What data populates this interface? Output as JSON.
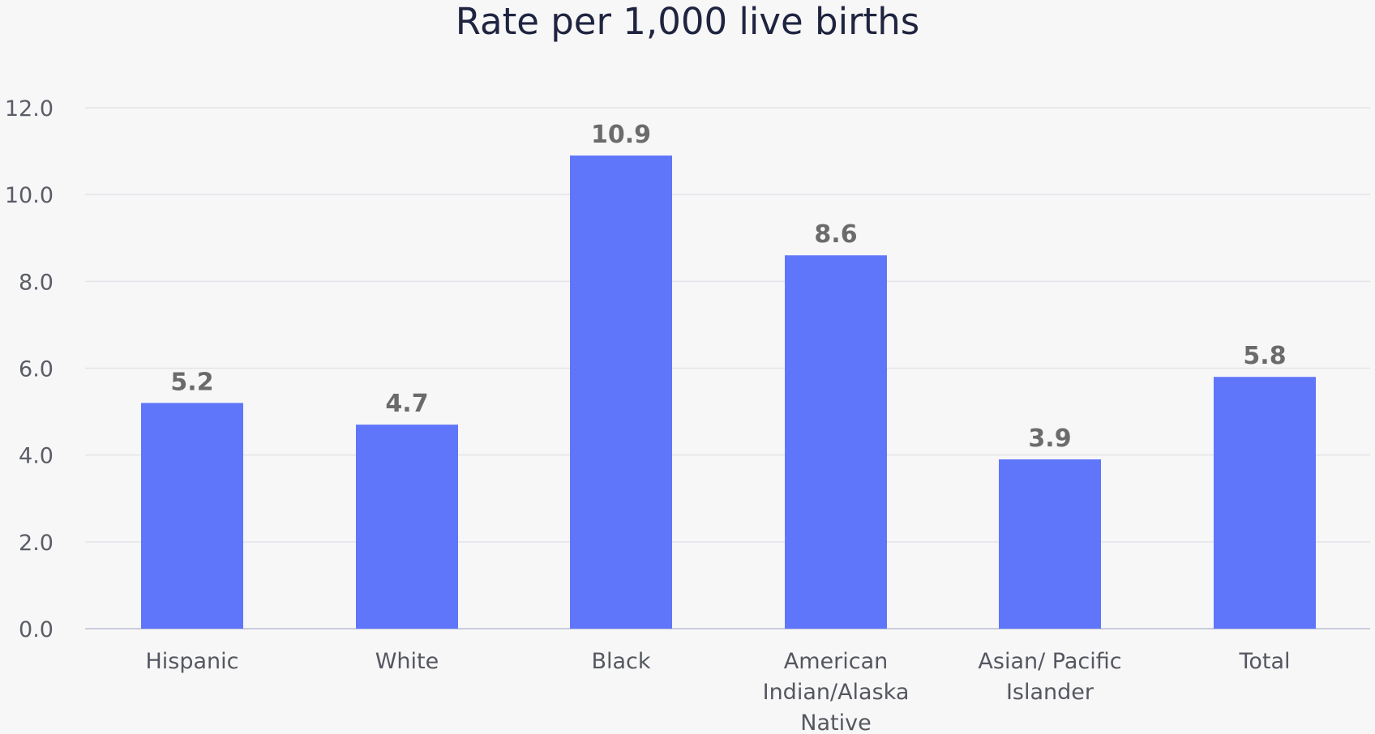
{
  "chart_data": {
    "type": "bar",
    "title": "Rate per 1,000 live births",
    "categories": [
      [
        "Hispanic"
      ],
      [
        "White"
      ],
      [
        "Black"
      ],
      [
        "American",
        "Indian/Alaska",
        "Native"
      ],
      [
        "Asian/ Pacific",
        "Islander"
      ],
      [
        "Total"
      ]
    ],
    "values": [
      5.2,
      4.7,
      10.9,
      8.6,
      3.9,
      5.8
    ],
    "data_labels": [
      "5.2",
      "4.7",
      "10.9",
      "8.6",
      "3.9",
      "5.8"
    ],
    "y_ticks": [
      "0.0",
      "2.0",
      "4.0",
      "6.0",
      "8.0",
      "10.0",
      "12.0"
    ],
    "ylim": [
      0,
      12
    ],
    "xlabel": "",
    "ylabel": "",
    "grid": true,
    "bar_color": "#6076fa"
  }
}
